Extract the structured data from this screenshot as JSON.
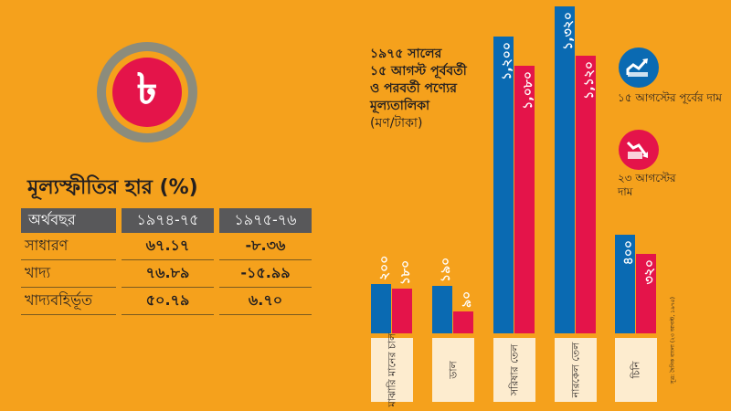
{
  "logo": {
    "symbol": "৳"
  },
  "inflation": {
    "title": "মূল্যস্ফীতির হার (%)",
    "headers": [
      "অর্থবছর",
      "১৯৭৪-৭৫",
      "১৯৭৫-৭৬"
    ],
    "rows": [
      [
        "সাধারণ",
        "৬৭.১৭",
        "-৮.৩৬"
      ],
      [
        "খাদ্য",
        "৭৬.৮৯",
        "-১৫.৯৯"
      ],
      [
        "খাদ্যবহির্ভূত",
        "৫০.৭৯",
        "৬.৭০"
      ]
    ]
  },
  "chart_data": {
    "type": "bar",
    "title_lines": [
      "১৯৭৫ সালের",
      "১৫ আগস্ট পূর্ববর্তী",
      "ও পরবর্তী পণ্যের",
      "মূল্যতালিকা"
    ],
    "unit": "(মণ/টাকা)",
    "categories": [
      "মাঝারি মানের চাল",
      "ডাল",
      "সরিষার তেল",
      "নারকেল তেল",
      "চিনি"
    ],
    "series": [
      {
        "name": "১৫ আগস্টের পূর্বের দাম",
        "color": "#0a6ab2",
        "values": [
          200,
          190,
          1200,
          1320,
          400
        ],
        "labels": [
          "২০০",
          "১৯০",
          "১,২০০",
          "১,৩২০",
          "৪০০"
        ]
      },
      {
        "name": "২৩ আগস্টের দাম",
        "color": "#e4144a",
        "values": [
          180,
          90,
          1080,
          1120,
          320
        ],
        "labels": [
          "১৮০",
          "৯০",
          "১,০৮০",
          "১,১২০",
          "৩২০"
        ]
      }
    ],
    "ylim": [
      0,
      1320
    ]
  },
  "source": "সূত্র: দৈনিক বাংলা (২৩ আগস্ট, ১৯৭৫)"
}
